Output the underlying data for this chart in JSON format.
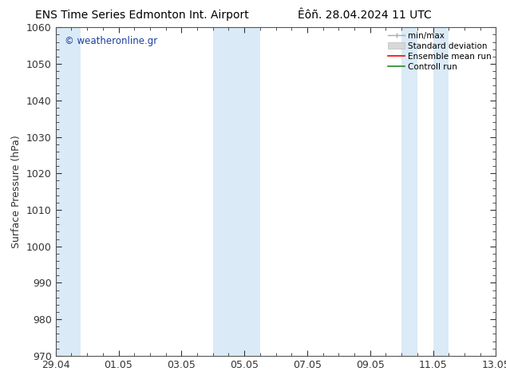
{
  "title_left": "ENS Time Series Edmonton Int. Airport",
  "title_right": "Êôñ. 28.04.2024 11 UTC",
  "ylabel": "Surface Pressure (hPa)",
  "ylim": [
    970,
    1060
  ],
  "yticks": [
    970,
    980,
    990,
    1000,
    1010,
    1020,
    1030,
    1040,
    1050,
    1060
  ],
  "xtick_labels": [
    "29.04",
    "01.05",
    "03.05",
    "05.05",
    "07.05",
    "09.05",
    "11.05",
    "13.05"
  ],
  "xtick_positions": [
    0,
    2,
    4,
    6,
    8,
    10,
    12,
    14
  ],
  "xlim": [
    0,
    14
  ],
  "watermark": "© weatheronline.gr",
  "watermark_color": "#1a3fa0",
  "bg_color": "#ffffff",
  "plot_bg_color": "#ffffff",
  "shaded_bands": [
    {
      "x_start": 0.0,
      "x_end": 0.8,
      "color": "#daeaf7"
    },
    {
      "x_start": 5.0,
      "x_end": 5.5,
      "color": "#daeaf7"
    },
    {
      "x_start": 5.5,
      "x_end": 6.5,
      "color": "#daeaf7"
    },
    {
      "x_start": 11.0,
      "x_end": 11.5,
      "color": "#daeaf7"
    },
    {
      "x_start": 12.0,
      "x_end": 12.5,
      "color": "#daeaf7"
    }
  ],
  "legend_labels": [
    "min/max",
    "Standard deviation",
    "Ensemble mean run",
    "Controll run"
  ],
  "legend_colors": [
    "#aaaaaa",
    "#cccccc",
    "#ff0000",
    "#228B22"
  ],
  "spine_color": "#555555",
  "tick_color": "#333333",
  "title_fontsize": 10,
  "label_fontsize": 9,
  "tick_fontsize": 9
}
